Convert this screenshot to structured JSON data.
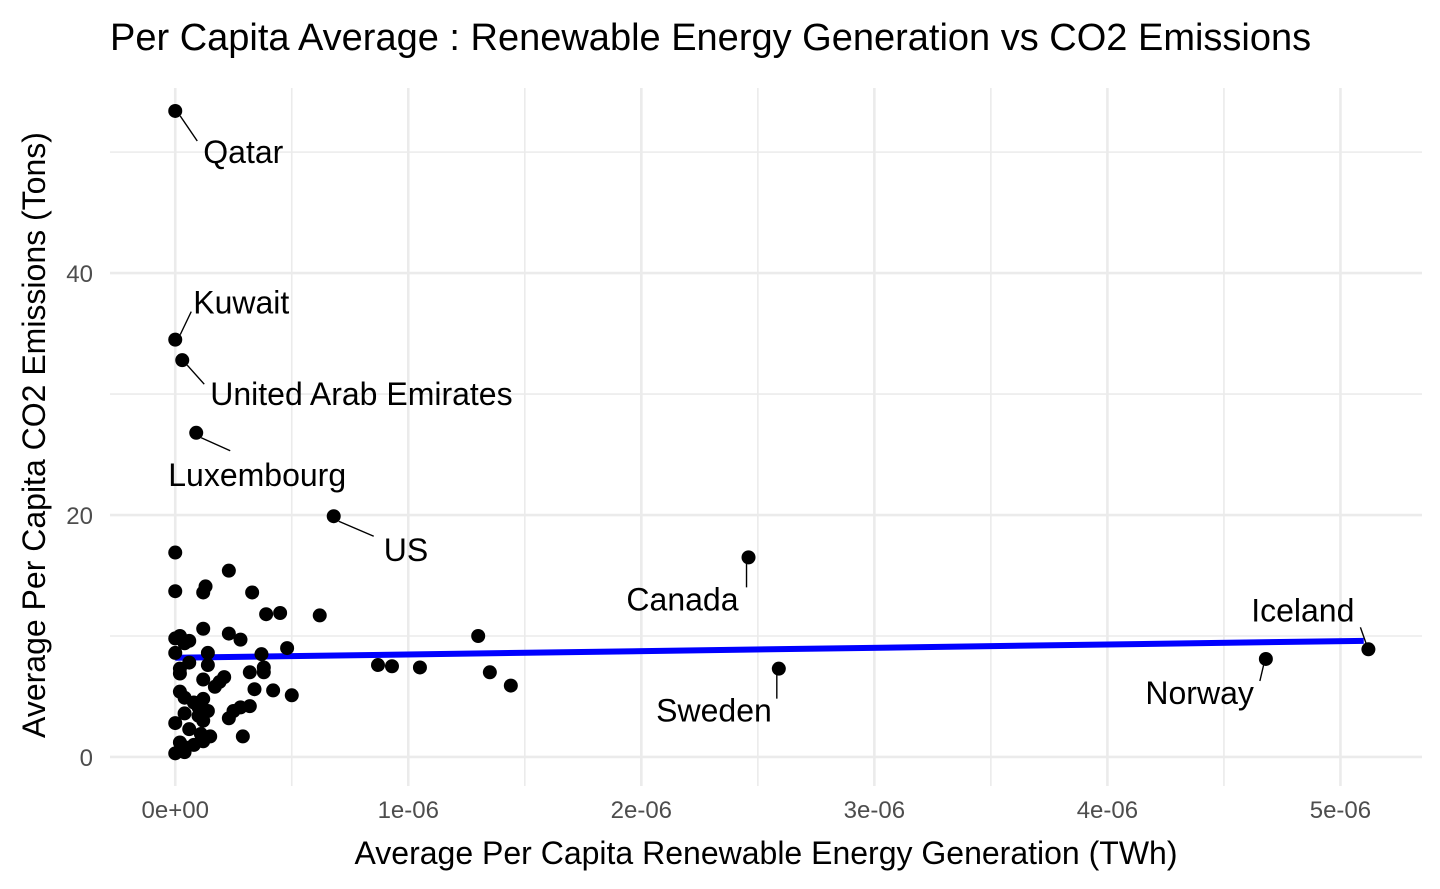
{
  "chart_data": {
    "type": "scatter",
    "title": "Per Capita Average : Renewable Energy Generation vs CO2 Emissions",
    "xlabel": "Average Per Capita Renewable Energy Generation (TWh)",
    "ylabel": "Average Per Capita CO2 Emissions (Tons)",
    "xlim": [
      -2.8e-07,
      5.35e-06
    ],
    "ylim": [
      -2.4,
      55.3
    ],
    "x_ticks": [
      0,
      1e-06,
      2e-06,
      3e-06,
      4e-06,
      5e-06
    ],
    "x_tick_labels": [
      "0e+00",
      "1e-06",
      "2e-06",
      "3e-06",
      "4e-06",
      "5e-06"
    ],
    "y_ticks": [
      0,
      20,
      40
    ],
    "y_tick_labels": [
      "0",
      "20",
      "40"
    ],
    "grid": true,
    "legend": "none",
    "colors": {
      "points": "#000000",
      "trend_line": "#0000ff",
      "grid": "#ebebeb"
    },
    "trend_line": {
      "x": [
        0,
        5.1e-06
      ],
      "y": [
        8.2,
        9.6
      ]
    },
    "labeled_points": [
      {
        "label": "Qatar",
        "x": 0.0,
        "y": 53.4
      },
      {
        "label": "Kuwait",
        "x": 0.0,
        "y": 34.5
      },
      {
        "label": "United Arab Emirates",
        "x": 3e-08,
        "y": 32.8
      },
      {
        "label": "Luxembourg",
        "x": 9e-08,
        "y": 26.8
      },
      {
        "label": "US",
        "x": 6.8e-07,
        "y": 19.9
      },
      {
        "label": "Canada",
        "x": 2.46e-06,
        "y": 16.5
      },
      {
        "label": "Iceland",
        "x": 5.12e-06,
        "y": 8.9
      },
      {
        "label": "Norway",
        "x": 4.68e-06,
        "y": 8.1
      },
      {
        "label": "Sweden",
        "x": 2.59e-06,
        "y": 7.3
      }
    ],
    "points": [
      {
        "x": 0.0,
        "y": 16.9
      },
      {
        "x": 0.0,
        "y": 13.7
      },
      {
        "x": 0.0,
        "y": 9.8
      },
      {
        "x": 0.0,
        "y": 8.6
      },
      {
        "x": 0.0,
        "y": 2.8
      },
      {
        "x": 0.0,
        "y": 0.3
      },
      {
        "x": 2e-08,
        "y": 10.0
      },
      {
        "x": 2e-08,
        "y": 7.3
      },
      {
        "x": 2e-08,
        "y": 6.9
      },
      {
        "x": 2e-08,
        "y": 5.4
      },
      {
        "x": 2e-08,
        "y": 1.2
      },
      {
        "x": 4e-08,
        "y": 9.4
      },
      {
        "x": 4e-08,
        "y": 4.9
      },
      {
        "x": 4e-08,
        "y": 3.6
      },
      {
        "x": 4e-08,
        "y": 0.8
      },
      {
        "x": 4e-08,
        "y": 0.4
      },
      {
        "x": 6e-08,
        "y": 9.6
      },
      {
        "x": 6e-08,
        "y": 7.8
      },
      {
        "x": 6e-08,
        "y": 2.3
      },
      {
        "x": 8e-08,
        "y": 4.5
      },
      {
        "x": 8e-08,
        "y": 1.0
      },
      {
        "x": 1e-07,
        "y": 3.4
      },
      {
        "x": 1e-07,
        "y": 4.1
      },
      {
        "x": 1.1e-07,
        "y": 1.9
      },
      {
        "x": 1.2e-07,
        "y": 13.6
      },
      {
        "x": 1.2e-07,
        "y": 3.0
      },
      {
        "x": 1.2e-07,
        "y": 1.3
      },
      {
        "x": 1.2e-07,
        "y": 6.4
      },
      {
        "x": 1.2e-07,
        "y": 4.8
      },
      {
        "x": 1.2e-07,
        "y": 10.6
      },
      {
        "x": 1.3e-07,
        "y": 14.1
      },
      {
        "x": 1.4e-07,
        "y": 8.6
      },
      {
        "x": 1.4e-07,
        "y": 7.6
      },
      {
        "x": 1.4e-07,
        "y": 3.8
      },
      {
        "x": 1.5e-07,
        "y": 1.7
      },
      {
        "x": 1.7e-07,
        "y": 5.8
      },
      {
        "x": 1.9e-07,
        "y": 6.2
      },
      {
        "x": 2.1e-07,
        "y": 6.6
      },
      {
        "x": 2.3e-07,
        "y": 3.2
      },
      {
        "x": 2.3e-07,
        "y": 10.2
      },
      {
        "x": 2.3e-07,
        "y": 15.4
      },
      {
        "x": 2.5e-07,
        "y": 3.8
      },
      {
        "x": 2.8e-07,
        "y": 9.7
      },
      {
        "x": 2.8e-07,
        "y": 4.1
      },
      {
        "x": 2.9e-07,
        "y": 1.7
      },
      {
        "x": 3.2e-07,
        "y": 7.0
      },
      {
        "x": 3.2e-07,
        "y": 4.2
      },
      {
        "x": 3.3e-07,
        "y": 13.6
      },
      {
        "x": 3.4e-07,
        "y": 5.6
      },
      {
        "x": 3.7e-07,
        "y": 8.5
      },
      {
        "x": 3.8e-07,
        "y": 7.4
      },
      {
        "x": 3.8e-07,
        "y": 7.0
      },
      {
        "x": 3.9e-07,
        "y": 11.8
      },
      {
        "x": 4.2e-07,
        "y": 5.5
      },
      {
        "x": 4.5e-07,
        "y": 11.9
      },
      {
        "x": 4.8e-07,
        "y": 9.0
      },
      {
        "x": 5e-07,
        "y": 5.1
      },
      {
        "x": 6.2e-07,
        "y": 11.7
      },
      {
        "x": 8.7e-07,
        "y": 7.6
      },
      {
        "x": 9.3e-07,
        "y": 7.5
      },
      {
        "x": 1.05e-06,
        "y": 7.4
      },
      {
        "x": 1.3e-06,
        "y": 10.0
      },
      {
        "x": 1.35e-06,
        "y": 7.0
      },
      {
        "x": 1.44e-06,
        "y": 5.9
      }
    ]
  }
}
